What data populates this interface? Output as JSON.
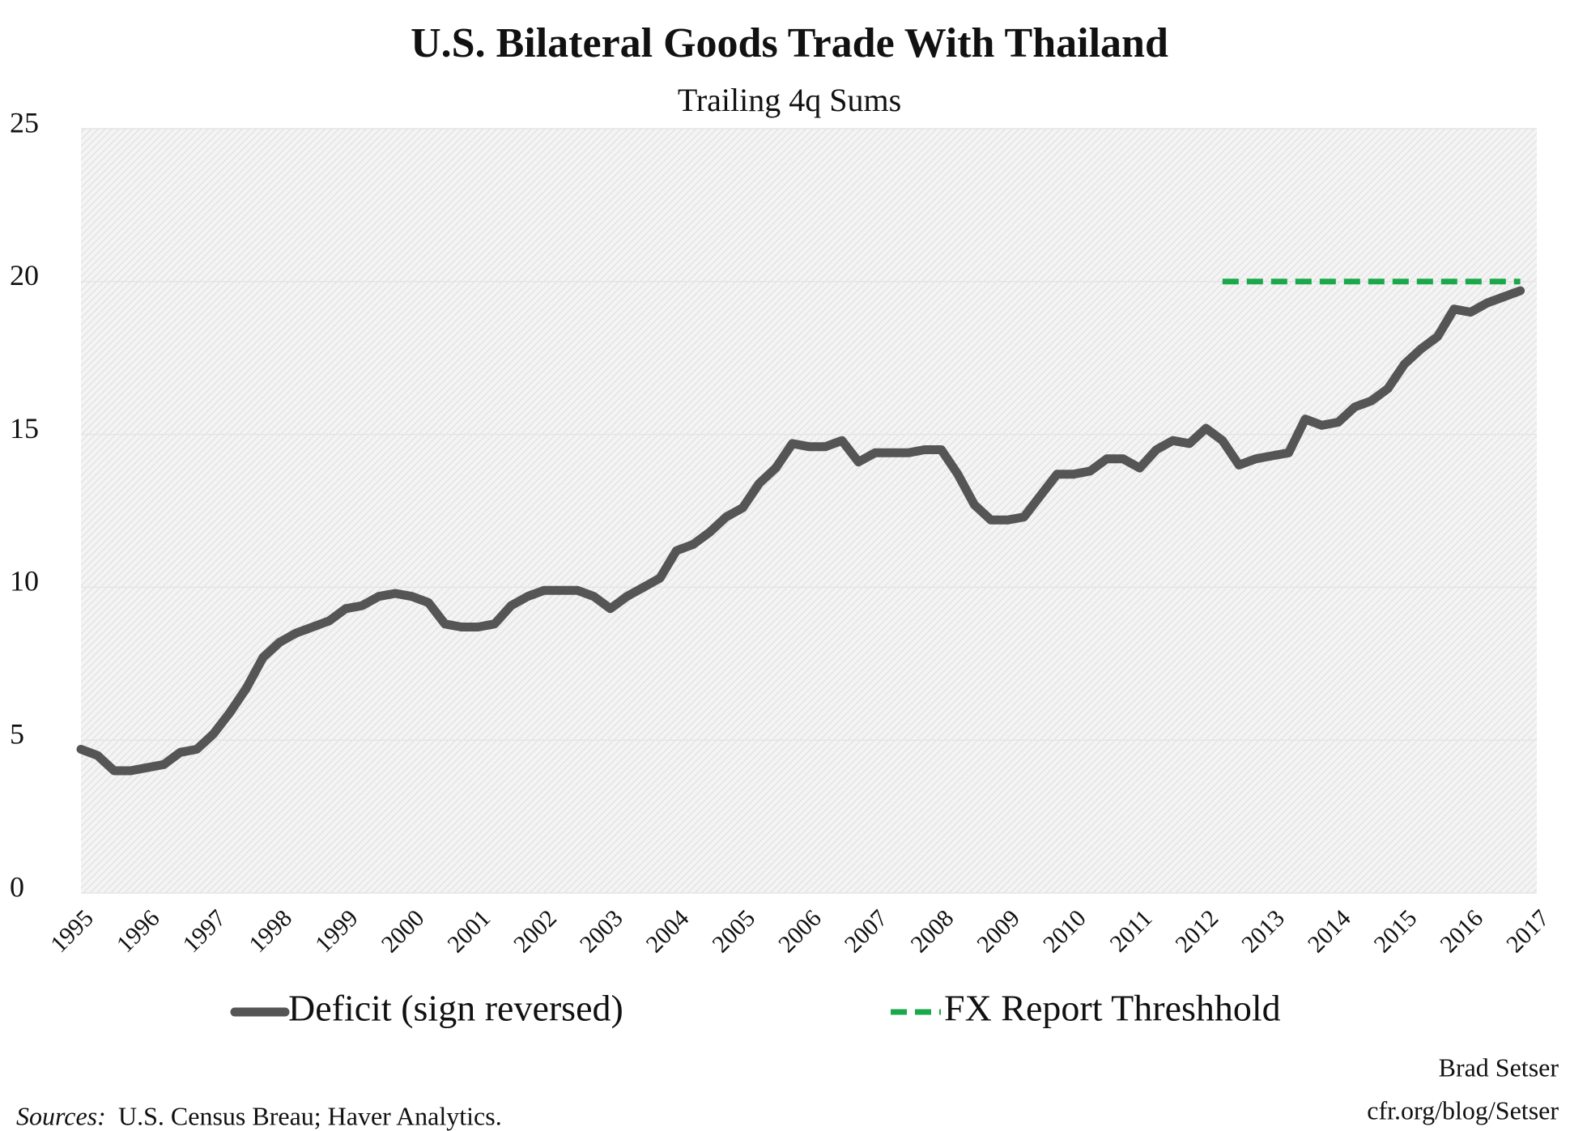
{
  "chart_data": {
    "type": "line",
    "title": "U.S. Bilateral Goods Trade With Thailand",
    "subtitle": "Trailing 4q Sums",
    "categories": [
      "1995",
      null,
      null,
      null,
      "1996",
      null,
      null,
      null,
      "1997",
      null,
      null,
      null,
      "1998",
      null,
      null,
      null,
      "1999",
      null,
      null,
      null,
      "2000",
      null,
      null,
      null,
      "2001",
      null,
      null,
      null,
      "2002",
      null,
      null,
      null,
      "2003",
      null,
      null,
      null,
      "2004",
      null,
      null,
      null,
      "2005",
      null,
      null,
      null,
      "2006",
      null,
      null,
      null,
      "2007",
      null,
      null,
      null,
      "2008",
      null,
      null,
      null,
      "2009",
      null,
      null,
      null,
      "2010",
      null,
      null,
      null,
      "2011",
      null,
      null,
      null,
      "2012",
      null,
      null,
      null,
      "2013",
      null,
      null,
      null,
      "2014",
      null,
      null,
      null,
      "2015",
      null,
      null,
      null,
      "2016",
      null,
      null,
      null,
      "2017"
    ],
    "series": [
      {
        "name": "Deficit (sign reversed)",
        "color": "#555555",
        "dash": false,
        "values": [
          4.7,
          4.5,
          4.0,
          4.0,
          4.1,
          4.2,
          4.6,
          4.7,
          5.2,
          5.9,
          6.7,
          7.7,
          8.2,
          8.5,
          8.7,
          8.9,
          9.3,
          9.4,
          9.7,
          9.8,
          9.7,
          9.5,
          8.8,
          8.7,
          8.7,
          8.8,
          9.4,
          9.7,
          9.9,
          9.9,
          9.9,
          9.7,
          9.3,
          9.7,
          10.0,
          10.3,
          11.2,
          11.4,
          11.8,
          12.3,
          12.6,
          13.4,
          13.9,
          14.7,
          14.6,
          14.6,
          14.8,
          14.1,
          14.4,
          14.4,
          14.4,
          14.5,
          14.5,
          13.7,
          12.7,
          12.2,
          12.2,
          12.3,
          13.0,
          13.7,
          13.7,
          13.8,
          14.2,
          14.2,
          13.9,
          14.5,
          14.8,
          14.7,
          15.2,
          14.8,
          14.0,
          14.2,
          14.3,
          14.4,
          15.5,
          15.3,
          15.4,
          15.9,
          16.1,
          16.5,
          17.3,
          17.8,
          18.2,
          19.1,
          19.0,
          19.3,
          19.5,
          19.7,
          null
        ]
      },
      {
        "name": "FX Report Threshhold",
        "color": "#1aa84a",
        "dash": true,
        "values": [
          null,
          null,
          null,
          null,
          null,
          null,
          null,
          null,
          null,
          null,
          null,
          null,
          null,
          null,
          null,
          null,
          null,
          null,
          null,
          null,
          null,
          null,
          null,
          null,
          null,
          null,
          null,
          null,
          null,
          null,
          null,
          null,
          null,
          null,
          null,
          null,
          null,
          null,
          null,
          null,
          null,
          null,
          null,
          null,
          null,
          null,
          null,
          null,
          null,
          null,
          null,
          null,
          null,
          null,
          null,
          null,
          null,
          null,
          null,
          null,
          null,
          null,
          null,
          null,
          null,
          null,
          null,
          null,
          null,
          20,
          20,
          20,
          20,
          20,
          20,
          20,
          20,
          20,
          20,
          20,
          20,
          20,
          20,
          20,
          20,
          20,
          20,
          20,
          null
        ]
      }
    ],
    "ylim": [
      0,
      25
    ],
    "yticks": [
      0,
      5,
      10,
      15,
      20,
      25
    ],
    "grid": true,
    "source_label": "Sources:",
    "source": "U.S. Census Breau; Haver Analytics.",
    "author": "Brad Setser",
    "url": "cfr.org/blog/Setser"
  }
}
